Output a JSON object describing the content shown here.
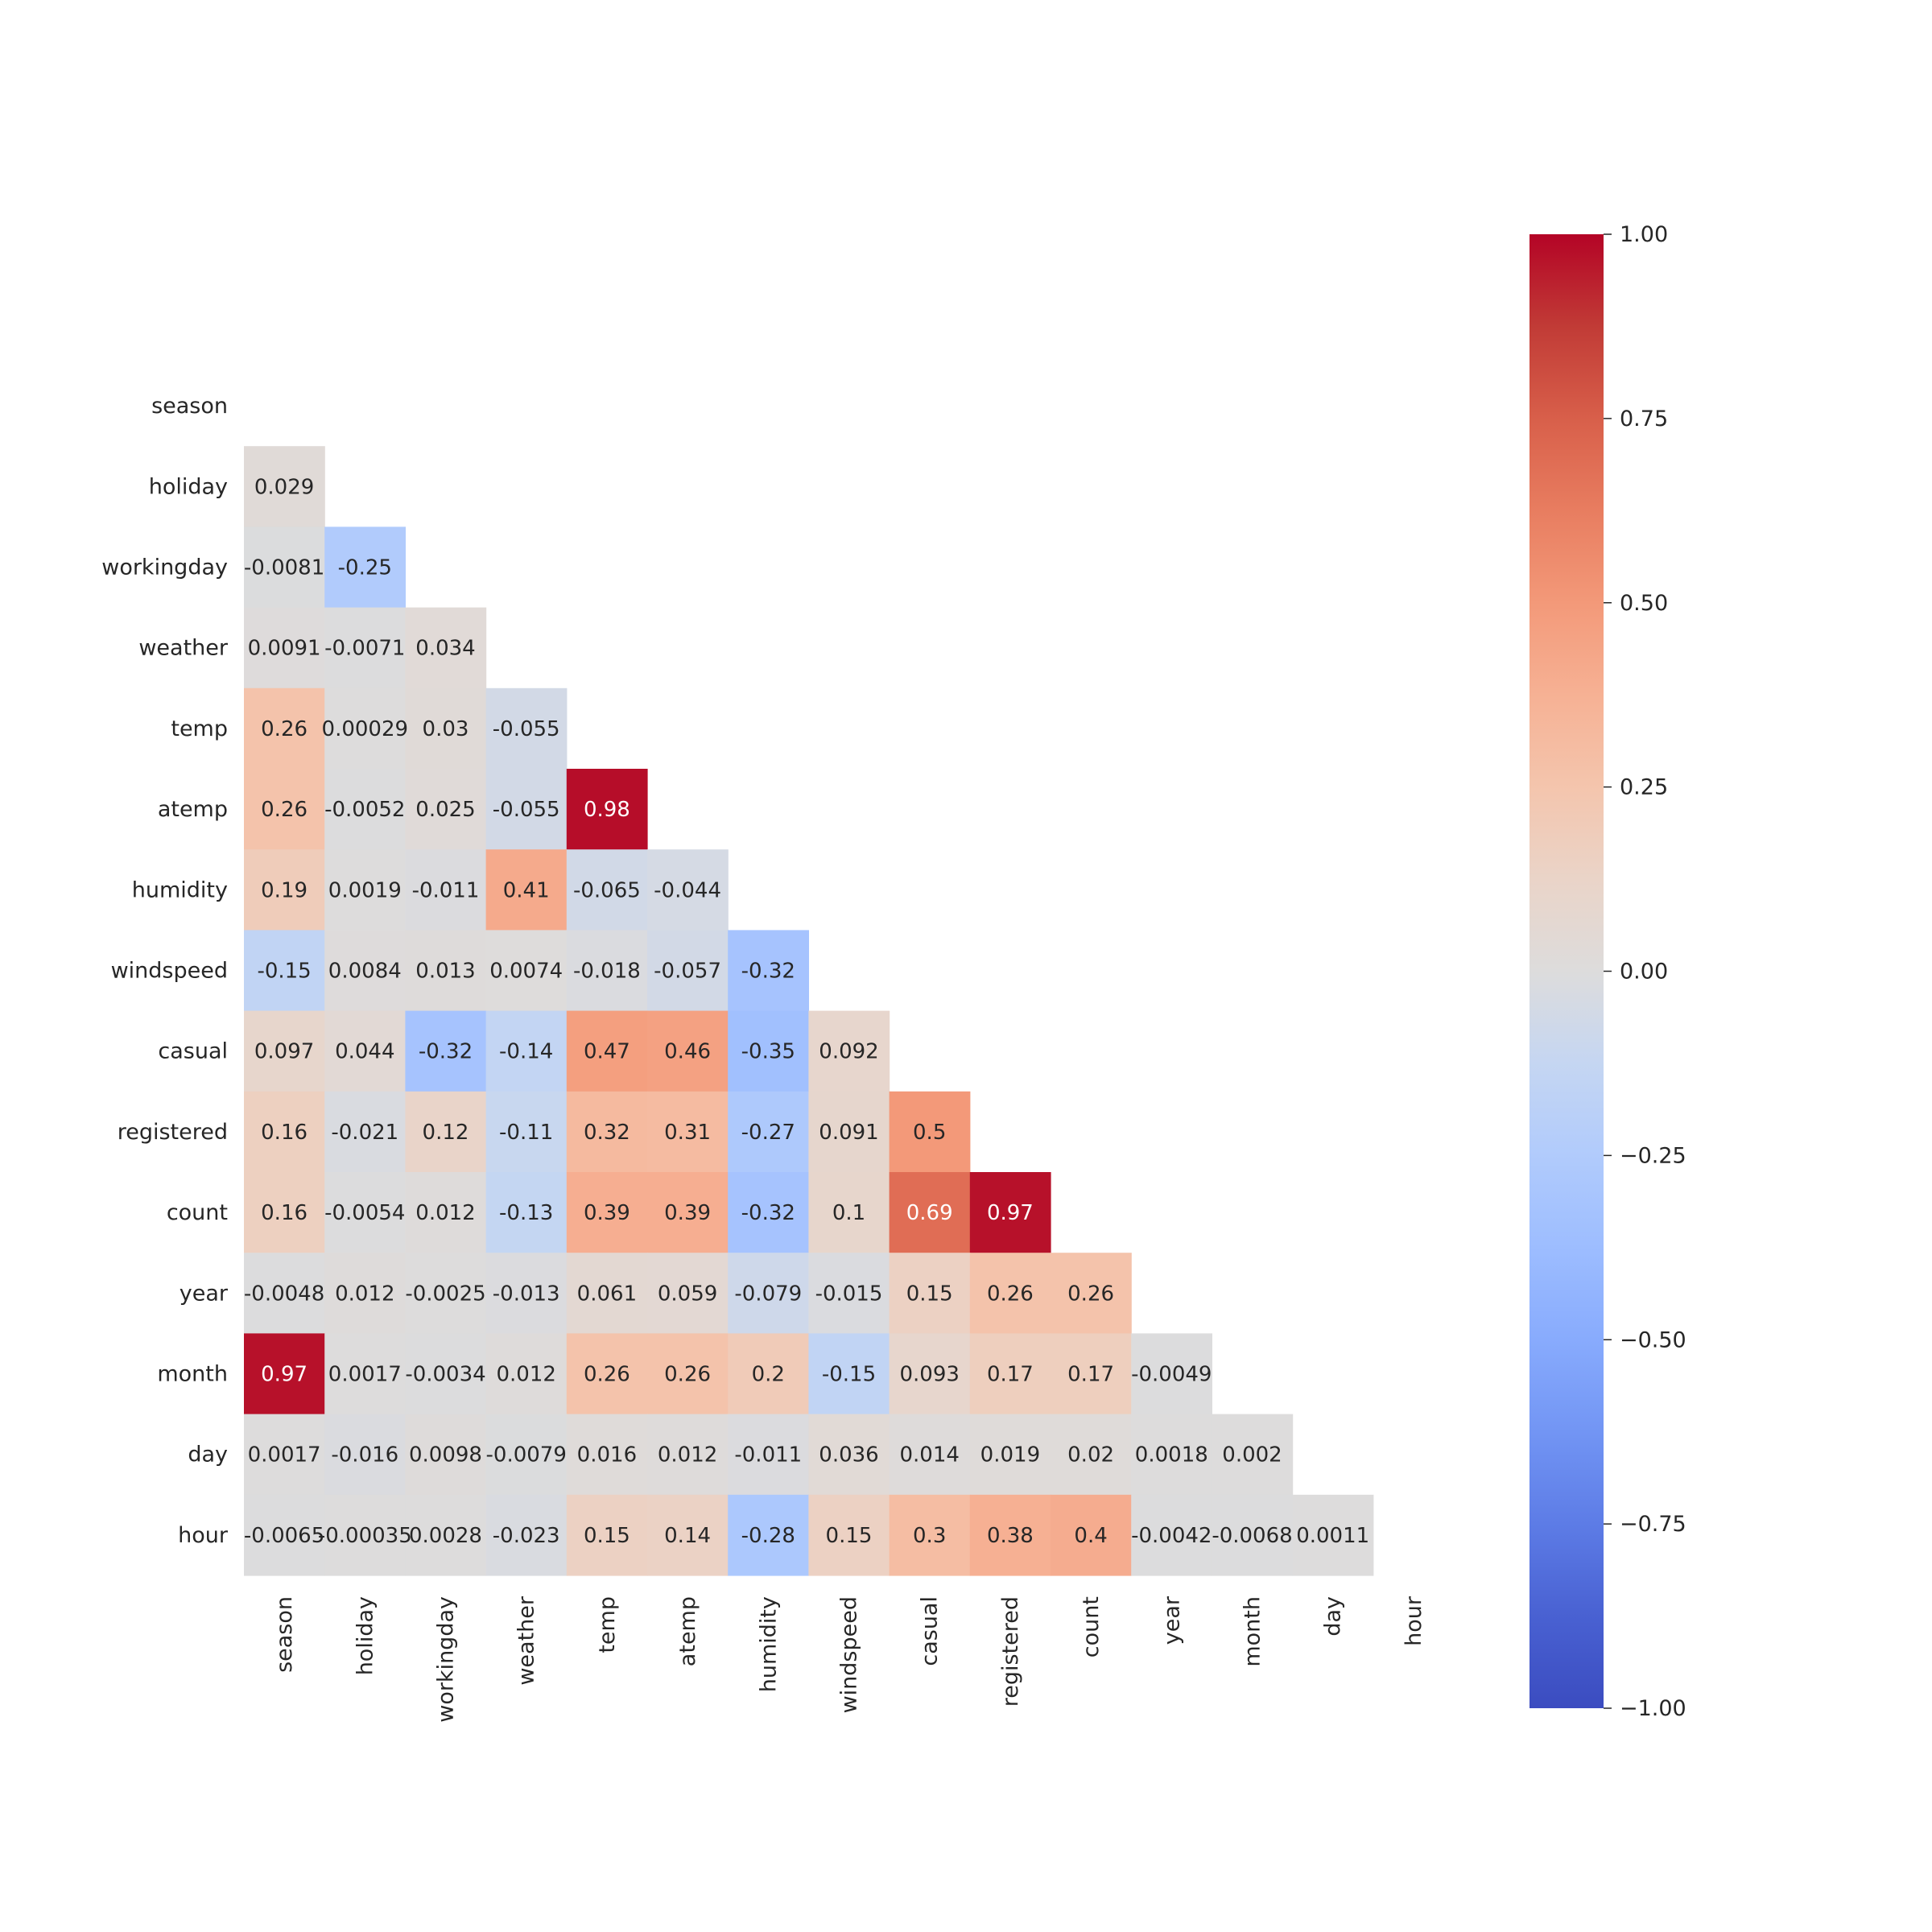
{
  "chart_data": {
    "type": "heatmap",
    "title": "",
    "colormap": "coolwarm",
    "mask": "upper-triangle-including-diagonal",
    "vmin": -1,
    "vmax": 1,
    "labels": [
      "season",
      "holiday",
      "workingday",
      "weather",
      "temp",
      "atemp",
      "humidity",
      "windspeed",
      "casual",
      "registered",
      "count",
      "year",
      "month",
      "day",
      "hour"
    ],
    "lower_triangle": [
      [],
      [
        "0.029"
      ],
      [
        "-0.0081",
        "-0.25"
      ],
      [
        "0.0091",
        "-0.0071",
        "0.034"
      ],
      [
        "0.26",
        "0.00029",
        "0.03",
        "-0.055"
      ],
      [
        "0.26",
        "-0.0052",
        "0.025",
        "-0.055",
        "0.98"
      ],
      [
        "0.19",
        "0.0019",
        "-0.011",
        "0.41",
        "-0.065",
        "-0.044"
      ],
      [
        "-0.15",
        "0.0084",
        "0.013",
        "0.0074",
        "-0.018",
        "-0.057",
        "-0.32"
      ],
      [
        "0.097",
        "0.044",
        "-0.32",
        "-0.14",
        "0.47",
        "0.46",
        "-0.35",
        "0.092"
      ],
      [
        "0.16",
        "-0.021",
        "0.12",
        "-0.11",
        "0.32",
        "0.31",
        "-0.27",
        "0.091",
        "0.5"
      ],
      [
        "0.16",
        "-0.0054",
        "0.012",
        "-0.13",
        "0.39",
        "0.39",
        "-0.32",
        "0.1",
        "0.69",
        "0.97"
      ],
      [
        "-0.0048",
        "0.012",
        "-0.0025",
        "-0.013",
        "0.061",
        "0.059",
        "-0.079",
        "-0.015",
        "0.15",
        "0.26",
        "0.26"
      ],
      [
        "0.97",
        "0.0017",
        "-0.0034",
        "0.012",
        "0.26",
        "0.26",
        "0.2",
        "-0.15",
        "0.093",
        "0.17",
        "0.17",
        "-0.0049"
      ],
      [
        "0.0017",
        "-0.016",
        "0.0098",
        "-0.0079",
        "0.016",
        "0.012",
        "-0.011",
        "0.036",
        "0.014",
        "0.019",
        "0.02",
        "0.0018",
        "0.002"
      ],
      [
        "-0.0065",
        "-0.00035",
        "0.0028",
        "-0.023",
        "0.15",
        "0.14",
        "-0.28",
        "0.15",
        "0.3",
        "0.38",
        "0.4",
        "-0.0042",
        "-0.0068",
        "0.0011"
      ]
    ],
    "colorbar": {
      "ticks": [
        1.0,
        0.75,
        0.5,
        0.25,
        0.0,
        -0.25,
        -0.5,
        -0.75,
        -1.0
      ],
      "tick_labels": [
        "1.00",
        "0.75",
        "0.50",
        "0.25",
        "0.00",
        "−0.25",
        "−0.50",
        "−0.75",
        "−1.00"
      ]
    },
    "colors": {
      "low": "#3b4cc0",
      "mid": "#dddcdc",
      "high": "#b40426"
    }
  }
}
